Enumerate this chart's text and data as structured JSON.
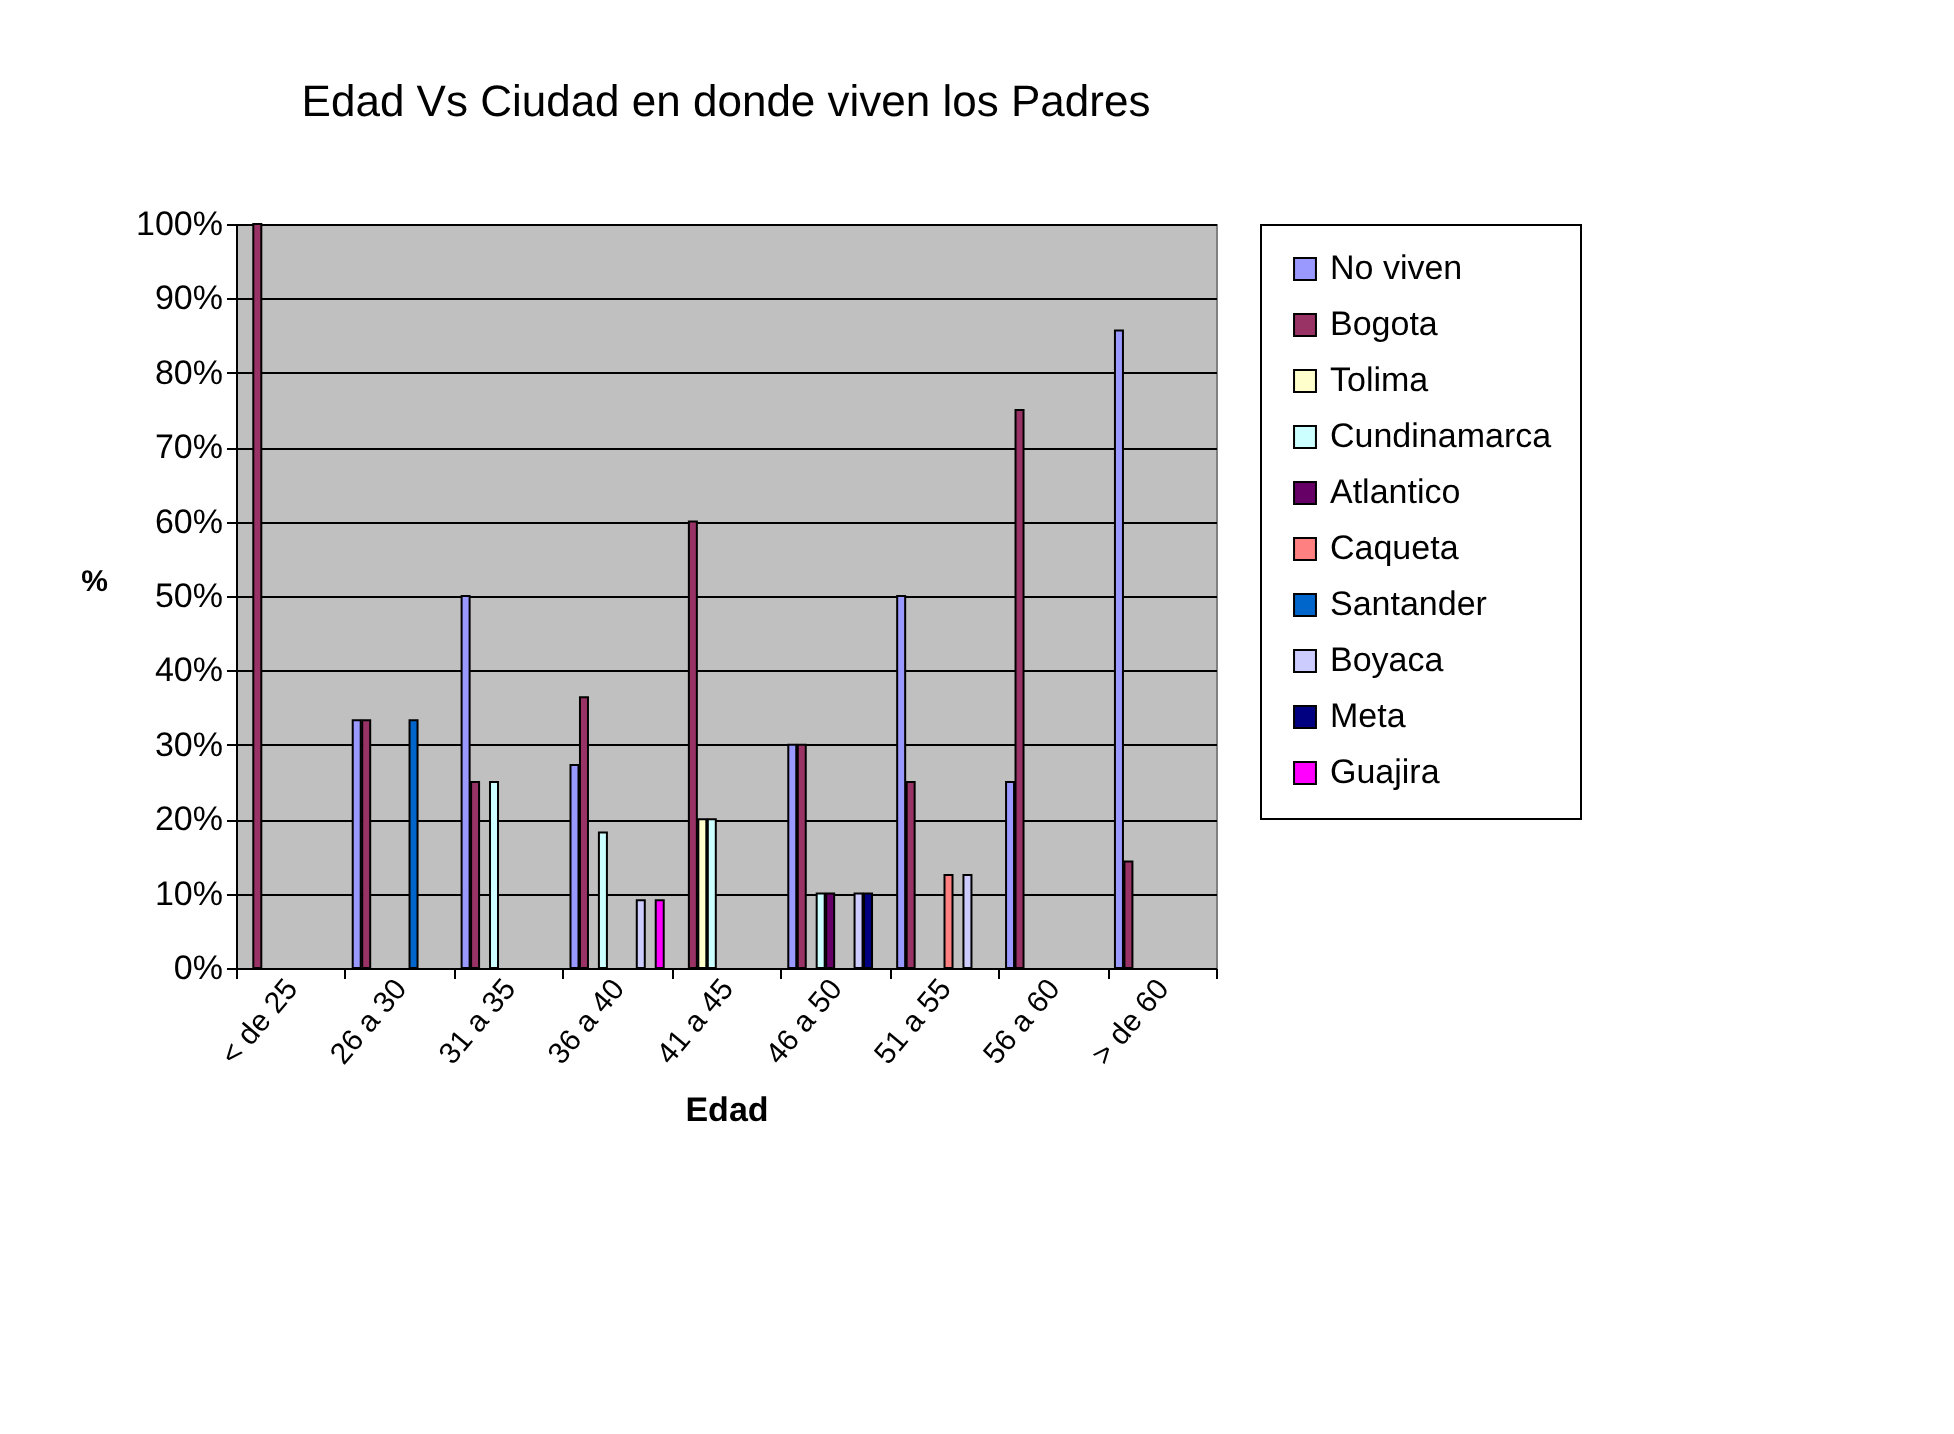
{
  "chart_data": {
    "type": "bar",
    "title": "Edad Vs Ciudad en donde viven los Padres",
    "xlabel": "Edad",
    "ylabel": "%",
    "categories": [
      "< de 25",
      "26 a 30",
      "31 a 35",
      "36 a 40",
      "41 a 45",
      "46 a 50",
      "51 a 55",
      "56 a 60",
      "> de 60"
    ],
    "series": [
      {
        "name": "No viven",
        "color": "#9999ff",
        "values": [
          null,
          33.3,
          50,
          27.3,
          null,
          30,
          50,
          25,
          85.7
        ]
      },
      {
        "name": "Bogota",
        "color": "#993366",
        "values": [
          100,
          33.3,
          25,
          36.4,
          60,
          30,
          25,
          75,
          14.3
        ]
      },
      {
        "name": "Tolima",
        "color": "#ffffcc",
        "values": [
          null,
          null,
          null,
          null,
          20,
          null,
          null,
          null,
          null
        ]
      },
      {
        "name": "Cundinamarca",
        "color": "#ccffff",
        "values": [
          null,
          null,
          25,
          18.2,
          20,
          10,
          null,
          null,
          null
        ]
      },
      {
        "name": "Atlantico",
        "color": "#660066",
        "values": [
          null,
          null,
          null,
          null,
          null,
          10,
          null,
          null,
          null
        ]
      },
      {
        "name": "Caqueta",
        "color": "#ff8080",
        "values": [
          null,
          null,
          null,
          null,
          null,
          null,
          12.5,
          null,
          null
        ]
      },
      {
        "name": "Santander",
        "color": "#0066cc",
        "values": [
          null,
          33.3,
          null,
          null,
          null,
          null,
          null,
          null,
          null
        ]
      },
      {
        "name": "Boyaca",
        "color": "#ccccff",
        "values": [
          null,
          null,
          null,
          9.1,
          null,
          10,
          12.5,
          null,
          null
        ]
      },
      {
        "name": "Meta",
        "color": "#000080",
        "values": [
          null,
          null,
          null,
          null,
          null,
          10,
          null,
          null,
          null
        ]
      },
      {
        "name": "Guajira",
        "color": "#ff00ff",
        "values": [
          null,
          null,
          null,
          9.1,
          null,
          null,
          null,
          null,
          null
        ]
      }
    ],
    "ylim": [
      0,
      100
    ],
    "yticks": [
      {
        "value": 0,
        "label": "0%"
      },
      {
        "value": 10,
        "label": "10%"
      },
      {
        "value": 20,
        "label": "20%"
      },
      {
        "value": 30,
        "label": "30%"
      },
      {
        "value": 40,
        "label": "40%"
      },
      {
        "value": 50,
        "label": "50%"
      },
      {
        "value": 60,
        "label": "60%"
      },
      {
        "value": 70,
        "label": "70%"
      },
      {
        "value": 80,
        "label": "80%"
      },
      {
        "value": 90,
        "label": "90%"
      },
      {
        "value": 100,
        "label": "100%"
      }
    ],
    "grid": "y",
    "legend": "right"
  }
}
